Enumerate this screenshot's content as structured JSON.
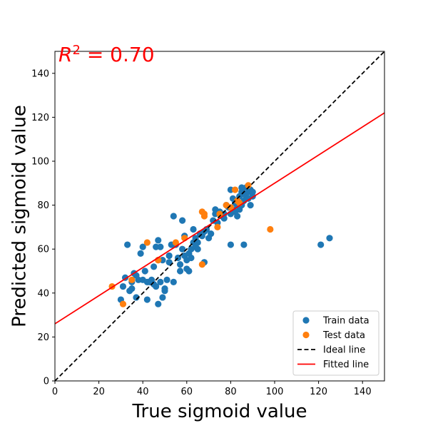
{
  "chart_data": {
    "type": "scatter",
    "title": "",
    "xlabel": "True sigmoid value",
    "ylabel": "Predicted sigmoid value",
    "xlim": [
      0,
      150
    ],
    "ylim": [
      0,
      150
    ],
    "xticks": [
      0,
      20,
      40,
      60,
      80,
      100,
      120,
      140
    ],
    "yticks": [
      0,
      20,
      40,
      60,
      80,
      100,
      120,
      140
    ],
    "grid": false,
    "legend_position": "lower-right",
    "annotation": {
      "prefix": "R",
      "sup": "2",
      "rest": " = 0.70",
      "color": "#ff0000"
    },
    "series": [
      {
        "name": "Train data",
        "kind": "scatter",
        "color": "#1f77b4",
        "points": [
          [
            30,
            37
          ],
          [
            31,
            43
          ],
          [
            32,
            47
          ],
          [
            33,
            62
          ],
          [
            34,
            41
          ],
          [
            35,
            42
          ],
          [
            35,
            45
          ],
          [
            36,
            49
          ],
          [
            37,
            48
          ],
          [
            37,
            38
          ],
          [
            38,
            46
          ],
          [
            39,
            58
          ],
          [
            40,
            61
          ],
          [
            40,
            46
          ],
          [
            41,
            50
          ],
          [
            42,
            45
          ],
          [
            42,
            37
          ],
          [
            43,
            45
          ],
          [
            44,
            46
          ],
          [
            45,
            44
          ],
          [
            45,
            52
          ],
          [
            46,
            61
          ],
          [
            46,
            43
          ],
          [
            47,
            55
          ],
          [
            47,
            35
          ],
          [
            47,
            64
          ],
          [
            48,
            61
          ],
          [
            48,
            45
          ],
          [
            49,
            38
          ],
          [
            49,
            55
          ],
          [
            50,
            42
          ],
          [
            50,
            41
          ],
          [
            51,
            46
          ],
          [
            52,
            57
          ],
          [
            52,
            54
          ],
          [
            53,
            62
          ],
          [
            54,
            75
          ],
          [
            54,
            45
          ],
          [
            55,
            62
          ],
          [
            56,
            56
          ],
          [
            57,
            50
          ],
          [
            57,
            53
          ],
          [
            58,
            73
          ],
          [
            58,
            60
          ],
          [
            59,
            66
          ],
          [
            59,
            57
          ],
          [
            60,
            55
          ],
          [
            60,
            51
          ],
          [
            61,
            58
          ],
          [
            61,
            50
          ],
          [
            62,
            60
          ],
          [
            62,
            56
          ],
          [
            63,
            69
          ],
          [
            63,
            63
          ],
          [
            64,
            65
          ],
          [
            64,
            61
          ],
          [
            65,
            60
          ],
          [
            65,
            63
          ],
          [
            66,
            67
          ],
          [
            67,
            66
          ],
          [
            68,
            54
          ],
          [
            68,
            68
          ],
          [
            69,
            69
          ],
          [
            70,
            65
          ],
          [
            71,
            67
          ],
          [
            72,
            73
          ],
          [
            73,
            76
          ],
          [
            73,
            78
          ],
          [
            74,
            72
          ],
          [
            75,
            77
          ],
          [
            76,
            75
          ],
          [
            77,
            76
          ],
          [
            77,
            74
          ],
          [
            78,
            80
          ],
          [
            79,
            79
          ],
          [
            80,
            76
          ],
          [
            80,
            87
          ],
          [
            80,
            62
          ],
          [
            81,
            78
          ],
          [
            81,
            83
          ],
          [
            82,
            77
          ],
          [
            82,
            81
          ],
          [
            83,
            80
          ],
          [
            83,
            75
          ],
          [
            84,
            84
          ],
          [
            84,
            78
          ],
          [
            85,
            86
          ],
          [
            85,
            80
          ],
          [
            86,
            85
          ],
          [
            86,
            82
          ],
          [
            86,
            62
          ],
          [
            87,
            88
          ],
          [
            87,
            84
          ],
          [
            88,
            83
          ],
          [
            88,
            86
          ],
          [
            89,
            80
          ],
          [
            89,
            87
          ],
          [
            90,
            84
          ],
          [
            90,
            86
          ],
          [
            85,
            88
          ],
          [
            121,
            62
          ],
          [
            125,
            65
          ]
        ]
      },
      {
        "name": "Test data",
        "kind": "scatter",
        "color": "#ff7f0e",
        "points": [
          [
            26,
            43
          ],
          [
            31,
            35
          ],
          [
            35,
            46
          ],
          [
            42,
            63
          ],
          [
            47,
            55
          ],
          [
            55,
            63
          ],
          [
            59,
            65
          ],
          [
            67,
            53
          ],
          [
            67,
            77
          ],
          [
            68,
            76
          ],
          [
            68,
            75
          ],
          [
            74,
            70
          ],
          [
            75,
            76
          ],
          [
            78,
            80
          ],
          [
            80,
            79
          ],
          [
            82,
            87
          ],
          [
            83,
            82
          ],
          [
            84,
            81
          ],
          [
            88,
            89
          ],
          [
            98,
            69
          ]
        ]
      },
      {
        "name": "Ideal line",
        "kind": "line",
        "color": "#000000",
        "dash": true,
        "x": [
          0,
          150
        ],
        "y": [
          0,
          150
        ]
      },
      {
        "name": "Fitted line",
        "kind": "line",
        "color": "#ff0000",
        "dash": false,
        "x": [
          0,
          150
        ],
        "y": [
          26,
          122
        ]
      }
    ]
  }
}
